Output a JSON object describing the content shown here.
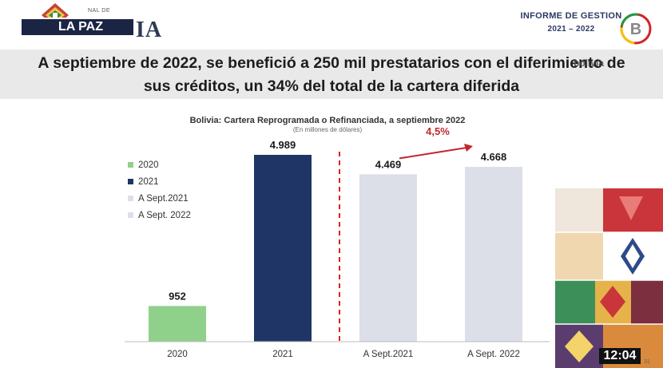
{
  "header": {
    "city_tag": "LA PAZ",
    "gov_small": "NAL DE",
    "gov_word": "IA",
    "report_title": "INFORME DE GESTION",
    "report_years": "2021 – 2022"
  },
  "headline": {
    "line1": "A septiembre de 2022, se benefició a 250 mil prestatarios con el diferimiento de",
    "line2": "sus créditos, un 34% del total de la cartera diferida"
  },
  "watermark": "bolivia",
  "chart_data": {
    "type": "bar",
    "title": "Bolivia: Cartera Reprogramada o Refinanciada, a septiembre 2022",
    "subtitle": "(En millones de dólares)",
    "categories": [
      "2020",
      "2021",
      "A Sept.2021",
      "A Sept. 2022"
    ],
    "values": [
      952,
      4989,
      4469,
      4668
    ],
    "value_labels": [
      "952",
      "4.989",
      "4.469",
      "4.668"
    ],
    "colors": [
      "#8fd18a",
      "#1f3566",
      "#dcdfe8",
      "#dcdfe8"
    ],
    "legend": [
      {
        "label": "2020",
        "color": "#8fd18a"
      },
      {
        "label": "2021",
        "color": "#1f3566"
      },
      {
        "label": "A Sept.2021",
        "color": "#dcdfe8"
      },
      {
        "label": "A Sept. 2022",
        "color": "#dcdfe8"
      }
    ],
    "legend_position": "left",
    "ylim": [
      0,
      5500
    ],
    "grid": false,
    "annotation": {
      "text": "4,5%",
      "color": "#c4262e"
    },
    "separator_color": "#d62424",
    "xlabel": "",
    "ylabel": ""
  },
  "clock": "12:04",
  "page_number": "31"
}
